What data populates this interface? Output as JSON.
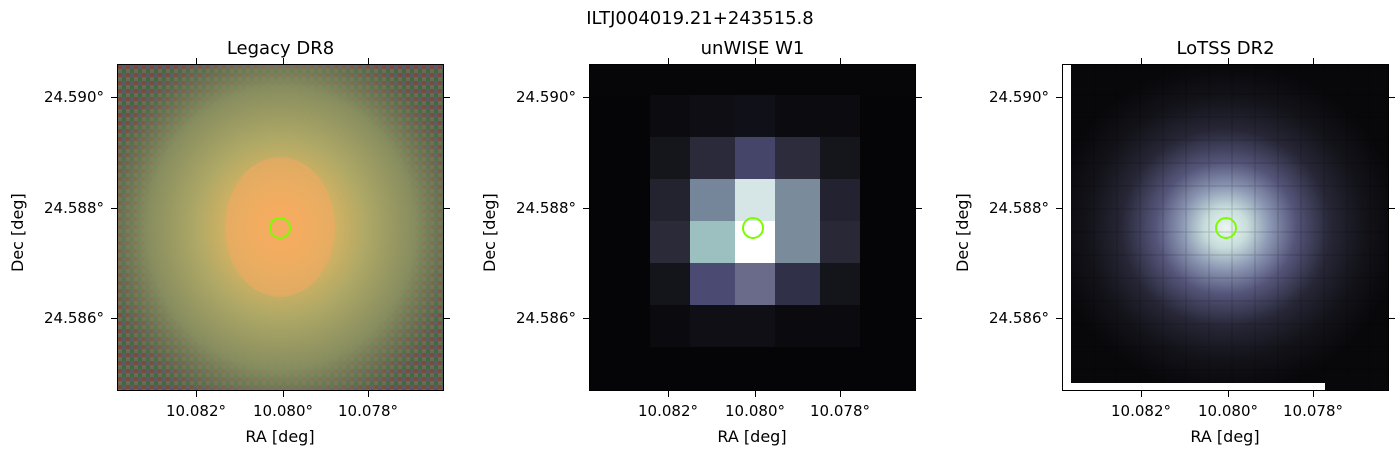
{
  "figure_title": "ILTJ004019.21+243515.8",
  "panels": [
    {
      "title": "Legacy DR8",
      "x_ticks": [
        "10.082°",
        "10.080°",
        "10.078°"
      ],
      "y_ticks": [
        "24.590°",
        "24.588°",
        "24.586°"
      ],
      "xlabel": "RA [deg]",
      "ylabel": "Dec [deg]"
    },
    {
      "title": "unWISE W1",
      "x_ticks": [
        "10.082°",
        "10.080°",
        "10.078°"
      ],
      "y_ticks": [
        "24.590°",
        "24.588°",
        "24.586°"
      ],
      "xlabel": "RA [deg]",
      "ylabel": "Dec [deg]"
    },
    {
      "title": "LoTSS DR2",
      "x_ticks": [
        "10.082°",
        "10.080°",
        "10.078°"
      ],
      "y_ticks": [
        "24.590°",
        "24.588°",
        "24.586°"
      ],
      "xlabel": "RA [deg]",
      "ylabel": "Dec [deg]"
    }
  ],
  "colors": {
    "marker": "#7CFC00",
    "optical_core": "#F5A85A",
    "optical_halo": "#8E9660",
    "radio_peak": "#E8F4F0",
    "ir_peak": "#FFFFFF"
  },
  "marker_icon": "circle-marker-icon"
}
